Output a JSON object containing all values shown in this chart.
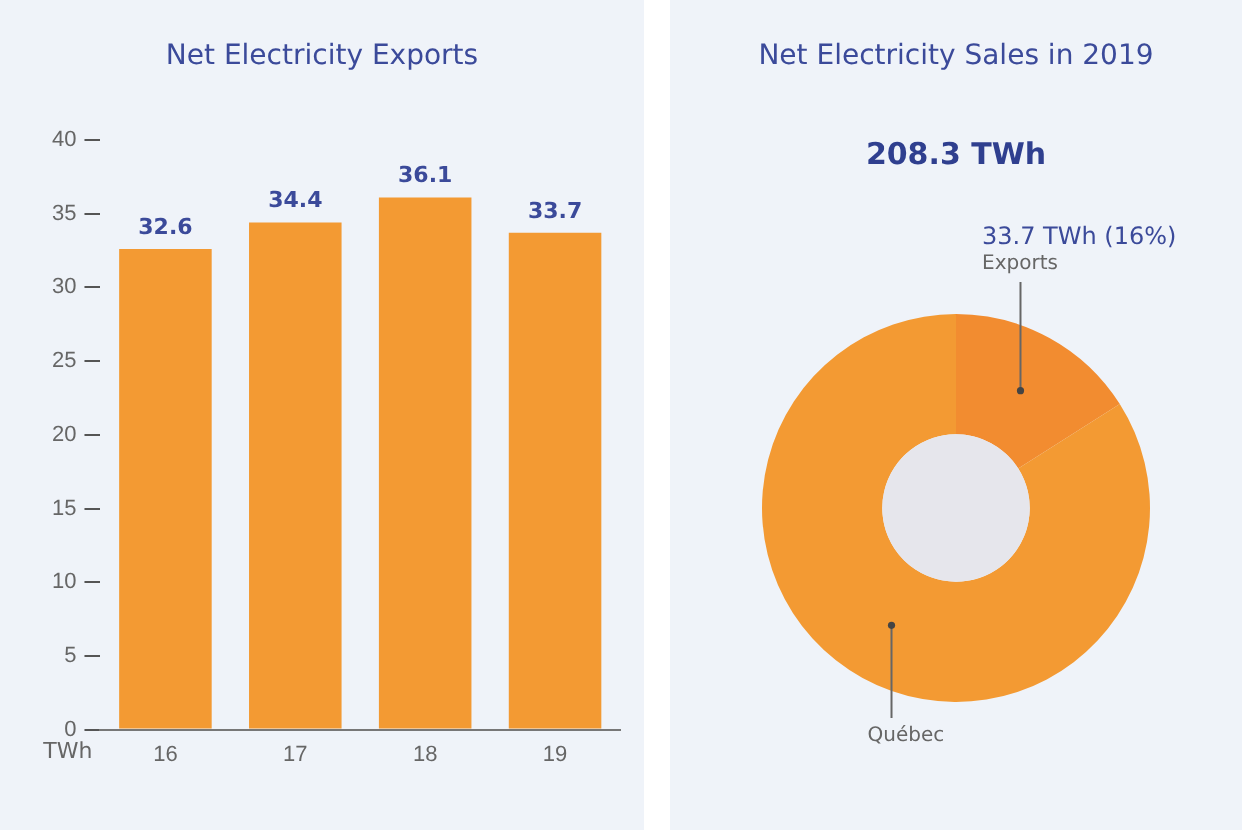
{
  "chart_data": [
    {
      "type": "bar",
      "title": "Net Electricity Exports",
      "ylabel": "TWh",
      "categories": [
        "16",
        "17",
        "18",
        "19"
      ],
      "values": [
        32.6,
        34.4,
        36.1,
        33.7
      ],
      "color": "#f39a33",
      "ylim": [
        0,
        40
      ],
      "yticks": [
        0,
        5,
        10,
        15,
        20,
        25,
        30,
        35,
        40
      ],
      "grid": false,
      "data_labels": true
    },
    {
      "type": "donut",
      "title": "Net Electricity Sales in 2019",
      "subtitle": "208.3 TWh",
      "categories": [
        "Exports",
        "Québec"
      ],
      "values": [
        16,
        84
      ],
      "colors": [
        "#f28c30",
        "#f39a33"
      ],
      "value_labels": [
        "33.7 TWh (16%)",
        null
      ]
    }
  ]
}
